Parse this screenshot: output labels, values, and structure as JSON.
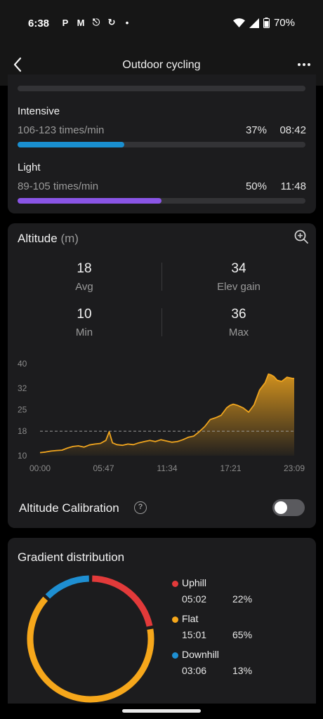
{
  "status_bar": {
    "time": "6:38",
    "icons": [
      "paypal-icon",
      "gmail-icon",
      "shield-app-icon",
      "sync-icon",
      "dot-icon"
    ],
    "battery": "70%"
  },
  "header": {
    "title": "Outdoor cycling"
  },
  "heart_rate_zones": [
    {
      "name": "Intensive",
      "range": "106-123 times/min",
      "percent": "37%",
      "duration": "08:42",
      "fill": 0.37,
      "color": "#1a8fd0"
    },
    {
      "name": "Light",
      "range": "89-105 times/min",
      "percent": "50%",
      "duration": "11:48",
      "fill": 0.5,
      "color": "#8a55e6"
    }
  ],
  "altitude": {
    "title": "Altitude",
    "unit": "(m)",
    "stats": {
      "avg": {
        "value": "18",
        "label": "Avg"
      },
      "elev_gain": {
        "value": "34",
        "label": "Elev gain"
      },
      "min": {
        "value": "10",
        "label": "Min"
      },
      "max": {
        "value": "36",
        "label": "Max"
      }
    },
    "calibration_label": "Altitude Calibration",
    "calibration_on": false
  },
  "chart_data": {
    "type": "area",
    "y_ticks": [
      "40",
      "32",
      "25",
      "18",
      "10"
    ],
    "x_ticks": [
      "00:00",
      "05:47",
      "11:34",
      "17:21",
      "23:09"
    ],
    "ylim": [
      10,
      40
    ],
    "average_line": 18,
    "series": [
      {
        "x": [
          0,
          0.5,
          1,
          1.5,
          2,
          2.5,
          3,
          3.5,
          4,
          4.5,
          5,
          5.5,
          6,
          6.3,
          6.6,
          7,
          7.5,
          8,
          8.5,
          9,
          9.5,
          10,
          10.5,
          11,
          11.5,
          12,
          12.5,
          13,
          13.5,
          14,
          14.5,
          15,
          15.5,
          16,
          16.5,
          17,
          17.3,
          17.6,
          18,
          18.5,
          19,
          19.5,
          20,
          20.5,
          20.8,
          21,
          21.3,
          21.6,
          22,
          22.5,
          23,
          23.15
        ],
        "y": [
          11,
          11.2,
          11.5,
          11.7,
          11.8,
          12.5,
          13,
          13.2,
          12.8,
          13.5,
          13.8,
          14,
          15,
          17.8,
          14.2,
          13.6,
          13.4,
          13.8,
          13.6,
          14.2,
          14.6,
          15,
          14.6,
          15.2,
          14.8,
          14.4,
          14.6,
          15.2,
          16,
          16.4,
          17.8,
          19.5,
          21.8,
          22.4,
          23.2,
          25.6,
          26.4,
          26.8,
          26.4,
          25.6,
          24.2,
          26.6,
          31.4,
          33.8,
          36.6,
          36.4,
          35.8,
          34.6,
          34.2,
          35.6,
          35.2,
          35.2
        ],
        "color": "#f0a51e"
      }
    ]
  },
  "gradient": {
    "title": "Gradient distribution",
    "items": [
      {
        "name": "Uphill",
        "time": "05:02",
        "percent": "22%",
        "value": 22,
        "color": "#e23a3a"
      },
      {
        "name": "Flat",
        "time": "15:01",
        "percent": "65%",
        "value": 65,
        "color": "#f6a71b"
      },
      {
        "name": "Downhill",
        "time": "03:06",
        "percent": "13%",
        "value": 13,
        "color": "#1e8fd2"
      }
    ]
  }
}
